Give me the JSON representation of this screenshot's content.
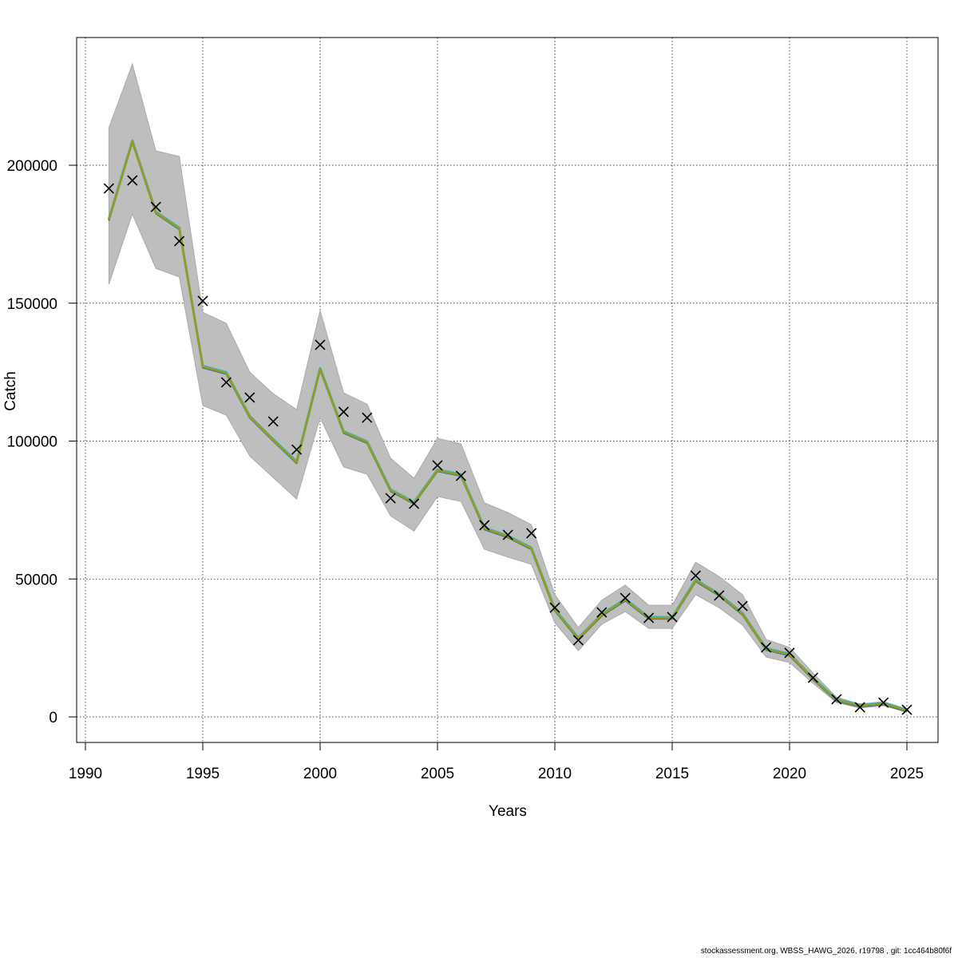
{
  "chart_data": {
    "type": "line",
    "title": "",
    "xlabel": "Years",
    "ylabel": "Catch",
    "xlim": [
      1990,
      2025
    ],
    "ylim": [
      0,
      236700
    ],
    "grid": true,
    "x_ticks": [
      1990,
      1995,
      2000,
      2005,
      2010,
      2015,
      2020,
      2025
    ],
    "y_ticks": [
      0,
      50000,
      100000,
      150000,
      200000
    ],
    "x": [
      1991,
      1992,
      1993,
      1994,
      1995,
      1996,
      1997,
      1998,
      1999,
      2000,
      2001,
      2002,
      2003,
      2004,
      2005,
      2006,
      2007,
      2008,
      2009,
      2010,
      2011,
      2012,
      2013,
      2014,
      2015,
      2016,
      2017,
      2018,
      2019,
      2020,
      2021,
      2022,
      2023,
      2024,
      2025
    ],
    "observed": [
      191600,
      194500,
      184900,
      172500,
      150800,
      121300,
      115800,
      107100,
      96900,
      134900,
      110600,
      108500,
      79300,
      77300,
      91200,
      87400,
      69500,
      66000,
      66600,
      39600,
      27800,
      37900,
      43100,
      35900,
      36200,
      51200,
      44000,
      40200,
      25200,
      23200,
      14200,
      6400,
      3500,
      5200,
      2600
    ],
    "fitted": [
      180300,
      208700,
      182900,
      177100,
      127000,
      124700,
      108800,
      100400,
      92300,
      126200,
      103300,
      99600,
      82200,
      77600,
      89400,
      87700,
      68300,
      65400,
      61100,
      38800,
      28400,
      37000,
      42500,
      35900,
      35900,
      49500,
      44300,
      37300,
      24600,
      22600,
      13900,
      6100,
      4100,
      4900,
      2300
    ],
    "ci_upper": [
      213600,
      236700,
      205200,
      203200,
      146700,
      142700,
      125000,
      117200,
      111400,
      147300,
      117500,
      113400,
      93800,
      86500,
      101000,
      99000,
      77600,
      74100,
      69700,
      44300,
      32400,
      42300,
      47800,
      40500,
      40500,
      56100,
      50900,
      44300,
      28100,
      25200,
      15900,
      7200,
      4600,
      5500,
      2900
    ],
    "ci_lower": [
      156900,
      182300,
      162600,
      159500,
      112900,
      109400,
      94600,
      86800,
      79000,
      108500,
      90600,
      88000,
      72900,
      67400,
      79900,
      78100,
      60800,
      57900,
      55300,
      34100,
      24000,
      33600,
      38200,
      32100,
      32100,
      44300,
      39600,
      33300,
      21700,
      19700,
      12200,
      5200,
      3200,
      4100,
      1700
    ],
    "line_colors": [
      "#2b1b8c",
      "#3fb8c8",
      "#1fa090",
      "#3aa03a",
      "#9a9a22"
    ],
    "ci_color": "#bebebe",
    "observed_marker": "x"
  },
  "footer": "stockassessment.org, WBSS_HAWG_2026, r19798 , git: 1cc464b80f6f"
}
